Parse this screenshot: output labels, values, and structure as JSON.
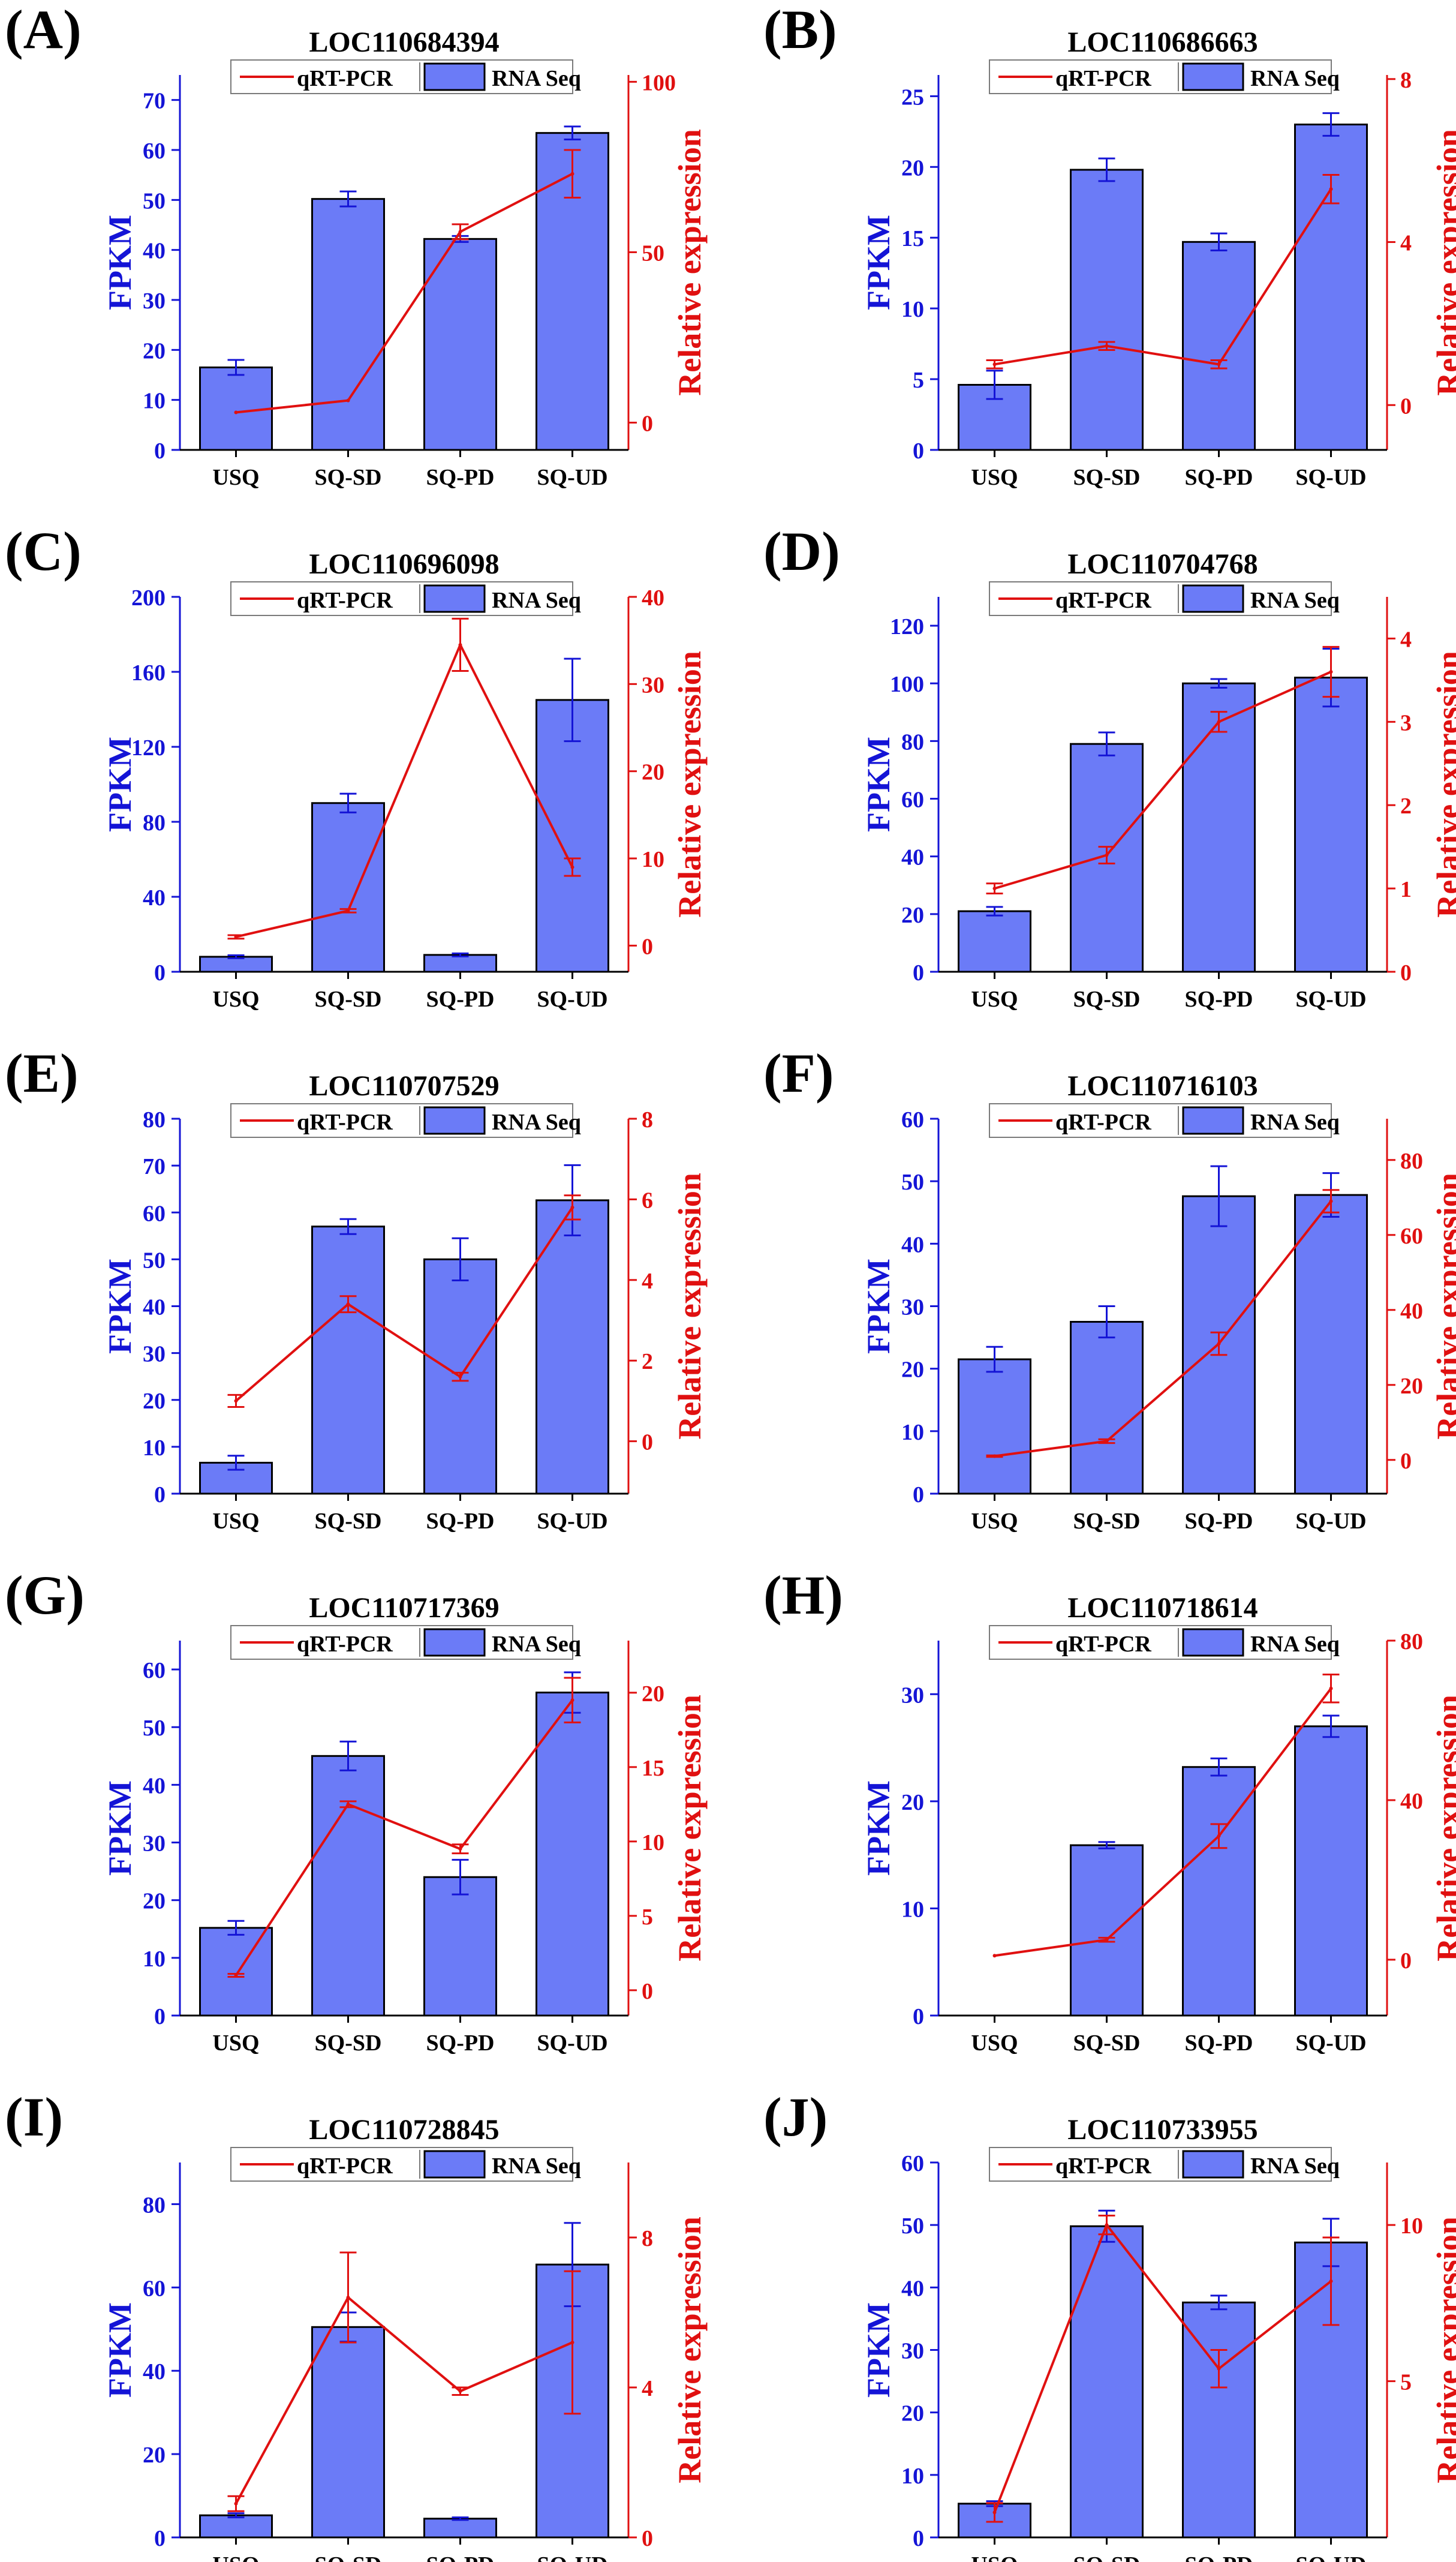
{
  "figure": {
    "categories": [
      "USQ",
      "SQ-SD",
      "SQ-PD",
      "SQ-UD"
    ],
    "left_axis_label": "FPKM",
    "right_axis_label": "Relative expression",
    "legend_line_label": "qRT-PCR",
    "legend_bar_label": "RNA Seq",
    "colors": {
      "bar_fill": "#6B7BF7",
      "bar_stroke": "#000000",
      "left_axis": "#1414D6",
      "right_axis": "#E01010",
      "line": "#E01010",
      "bar_error": "#1414D6",
      "text": "#000000"
    }
  },
  "chart_data": [
    {
      "panel": "(A)",
      "title": "LOC110684394",
      "type": "bar+line",
      "categories": [
        "USQ",
        "SQ-SD",
        "SQ-PD",
        "SQ-UD"
      ],
      "xlabel": "",
      "ylabel": "FPKM",
      "y2label": "Relative expression",
      "ylim": [
        0,
        75
      ],
      "yticks": [
        0,
        10,
        20,
        30,
        40,
        50,
        60,
        70
      ],
      "y2lim": [
        -8,
        102
      ],
      "y2ticks": [
        0,
        50,
        100
      ],
      "series": [
        {
          "name": "RNA Seq",
          "kind": "bar",
          "values": [
            16.5,
            50.2,
            42.2,
            63.4
          ],
          "errors": [
            1.5,
            1.5,
            0.6,
            1.3
          ]
        },
        {
          "name": "qRT-PCR",
          "kind": "line",
          "values": [
            3,
            6.5,
            56,
            73
          ],
          "errors": [
            0,
            0,
            2.2,
            7
          ]
        }
      ]
    },
    {
      "panel": "(B)",
      "title": "LOC110686663",
      "type": "bar+line",
      "categories": [
        "USQ",
        "SQ-SD",
        "SQ-PD",
        "SQ-UD"
      ],
      "xlabel": "",
      "ylabel": "FPKM",
      "y2label": "Relative expression",
      "ylim": [
        0,
        26.5
      ],
      "yticks": [
        0,
        5,
        10,
        15,
        20,
        25
      ],
      "y2lim": [
        -1.1,
        8.1
      ],
      "y2ticks": [
        0,
        4,
        8
      ],
      "series": [
        {
          "name": "RNA Seq",
          "kind": "bar",
          "values": [
            4.6,
            19.8,
            14.7,
            23.0
          ],
          "errors": [
            1.0,
            0.8,
            0.6,
            0.8
          ]
        },
        {
          "name": "qRT-PCR",
          "kind": "line",
          "values": [
            1.0,
            1.45,
            1.0,
            5.3
          ],
          "errors": [
            0.1,
            0.1,
            0.1,
            0.35
          ]
        }
      ]
    },
    {
      "panel": "(C)",
      "title": "LOC110696098",
      "type": "bar+line",
      "categories": [
        "USQ",
        "SQ-SD",
        "SQ-PD",
        "SQ-UD"
      ],
      "xlabel": "",
      "ylabel": "FPKM",
      "y2label": "Relative expression",
      "ylim": [
        0,
        200
      ],
      "yticks": [
        0,
        40,
        80,
        120,
        160,
        200
      ],
      "y2lim": [
        -3,
        40
      ],
      "y2ticks": [
        0,
        10,
        20,
        30,
        40
      ],
      "series": [
        {
          "name": "RNA Seq",
          "kind": "bar",
          "values": [
            8,
            90,
            9,
            145
          ],
          "errors": [
            0.8,
            5,
            0.8,
            22
          ]
        },
        {
          "name": "qRT-PCR",
          "kind": "line",
          "values": [
            1,
            4,
            34.5,
            9
          ],
          "errors": [
            0.2,
            0.2,
            3,
            1
          ]
        }
      ]
    },
    {
      "panel": "(D)",
      "title": "LOC110704768",
      "type": "bar+line",
      "categories": [
        "USQ",
        "SQ-SD",
        "SQ-PD",
        "SQ-UD"
      ],
      "xlabel": "",
      "ylabel": "FPKM",
      "y2label": "Relative expression",
      "ylim": [
        0,
        130
      ],
      "yticks": [
        0,
        20,
        40,
        60,
        80,
        100,
        120
      ],
      "y2lim": [
        0,
        4.5
      ],
      "y2ticks": [
        0,
        1,
        2,
        3,
        4
      ],
      "series": [
        {
          "name": "RNA Seq",
          "kind": "bar",
          "values": [
            21,
            79,
            100,
            102
          ],
          "errors": [
            1.5,
            4,
            1.5,
            10
          ]
        },
        {
          "name": "qRT-PCR",
          "kind": "line",
          "values": [
            1.0,
            1.4,
            3.0,
            3.6
          ],
          "errors": [
            0.06,
            0.1,
            0.12,
            0.3
          ]
        }
      ]
    },
    {
      "panel": "(E)",
      "title": "LOC110707529",
      "type": "bar+line",
      "categories": [
        "USQ",
        "SQ-SD",
        "SQ-PD",
        "SQ-UD"
      ],
      "xlabel": "",
      "ylabel": "FPKM",
      "y2label": "Relative expression",
      "ylim": [
        0,
        80
      ],
      "yticks": [
        0,
        10,
        20,
        30,
        40,
        50,
        60,
        70,
        80
      ],
      "y2lim": [
        -1.3,
        8
      ],
      "y2ticks": [
        0,
        2,
        4,
        6,
        8
      ],
      "series": [
        {
          "name": "RNA Seq",
          "kind": "bar",
          "values": [
            6.6,
            57,
            50,
            62.6
          ],
          "errors": [
            1.5,
            1.6,
            4.5,
            7.5
          ]
        },
        {
          "name": "qRT-PCR",
          "kind": "line",
          "values": [
            1.0,
            3.4,
            1.6,
            5.8
          ],
          "errors": [
            0.15,
            0.2,
            0.1,
            0.3
          ]
        }
      ]
    },
    {
      "panel": "(F)",
      "title": "LOC110716103",
      "type": "bar+line",
      "categories": [
        "USQ",
        "SQ-SD",
        "SQ-PD",
        "SQ-UD"
      ],
      "xlabel": "",
      "ylabel": "FPKM",
      "y2label": "Relative expression",
      "ylim": [
        0,
        60
      ],
      "yticks": [
        0,
        10,
        20,
        30,
        40,
        50,
        60
      ],
      "y2lim": [
        -9,
        91
      ],
      "y2ticks": [
        0,
        20,
        40,
        60,
        80
      ],
      "series": [
        {
          "name": "RNA Seq",
          "kind": "bar",
          "values": [
            21.5,
            27.5,
            47.6,
            47.8
          ],
          "errors": [
            2,
            2.5,
            4.8,
            3.5
          ]
        },
        {
          "name": "qRT-PCR",
          "kind": "line",
          "values": [
            1,
            5,
            31,
            69
          ],
          "errors": [
            0.2,
            0.5,
            3,
            3
          ]
        }
      ]
    },
    {
      "panel": "(G)",
      "title": "LOC110717369",
      "type": "bar+line",
      "categories": [
        "USQ",
        "SQ-SD",
        "SQ-PD",
        "SQ-UD"
      ],
      "xlabel": "",
      "ylabel": "FPKM",
      "y2label": "Relative expression",
      "ylim": [
        0,
        65
      ],
      "yticks": [
        0,
        10,
        20,
        30,
        40,
        50,
        60
      ],
      "y2lim": [
        -1.7,
        23.5
      ],
      "y2ticks": [
        0,
        5,
        10,
        15,
        20
      ],
      "series": [
        {
          "name": "RNA Seq",
          "kind": "bar",
          "values": [
            15.2,
            45,
            24,
            56
          ],
          "errors": [
            1.2,
            2.5,
            3.0,
            3.5
          ]
        },
        {
          "name": "qRT-PCR",
          "kind": "line",
          "values": [
            1,
            12.5,
            9.5,
            19.5
          ],
          "errors": [
            0.1,
            0.2,
            0.3,
            1.5
          ]
        }
      ]
    },
    {
      "panel": "(H)",
      "title": "LOC110718614",
      "type": "bar+line",
      "categories": [
        "USQ",
        "SQ-SD",
        "SQ-PD",
        "SQ-UD"
      ],
      "xlabel": "",
      "ylabel": "FPKM",
      "y2label": "Relative expression",
      "ylim": [
        0,
        35
      ],
      "yticks": [
        0,
        10,
        20,
        30
      ],
      "y2lim": [
        -14,
        80
      ],
      "y2ticks": [
        0,
        40,
        80
      ],
      "series": [
        {
          "name": "RNA Seq",
          "kind": "bar",
          "values": [
            0,
            15.9,
            23.2,
            27
          ],
          "errors": [
            0,
            0.3,
            0.8,
            1
          ]
        },
        {
          "name": "qRT-PCR",
          "kind": "line",
          "values": [
            1,
            5,
            31,
            68
          ],
          "errors": [
            0,
            0.5,
            3,
            3.5
          ]
        }
      ]
    },
    {
      "panel": "(I)",
      "title": "LOC110728845",
      "type": "bar+line",
      "categories": [
        "USQ",
        "SQ-SD",
        "SQ-PD",
        "SQ-UD"
      ],
      "xlabel": "",
      "ylabel": "FPKM",
      "y2label": "Relative expression",
      "ylim": [
        0,
        90
      ],
      "yticks": [
        0,
        20,
        40,
        60,
        80
      ],
      "y2lim": [
        0,
        10
      ],
      "y2ticks": [
        0,
        4,
        8
      ],
      "series": [
        {
          "name": "RNA Seq",
          "kind": "bar",
          "values": [
            5.3,
            50.5,
            4.5,
            65.5
          ],
          "errors": [
            0.5,
            3.5,
            0.3,
            10
          ]
        },
        {
          "name": "qRT-PCR",
          "kind": "line",
          "values": [
            0.9,
            6.4,
            3.9,
            5.2
          ],
          "errors": [
            0.2,
            1.2,
            0.1,
            1.9
          ]
        }
      ]
    },
    {
      "panel": "(J)",
      "title": "LOC110733955",
      "type": "bar+line",
      "categories": [
        "USQ",
        "SQ-SD",
        "SQ-PD",
        "SQ-UD"
      ],
      "xlabel": "",
      "ylabel": "FPKM",
      "y2label": "Relative expression",
      "ylim": [
        0,
        60
      ],
      "yticks": [
        0,
        10,
        20,
        30,
        40,
        50,
        60
      ],
      "y2lim": [
        0,
        12
      ],
      "y2ticks": [
        5,
        10
      ],
      "series": [
        {
          "name": "RNA Seq",
          "kind": "bar",
          "values": [
            5.4,
            49.8,
            37.6,
            47.2
          ],
          "errors": [
            0.4,
            2.5,
            1.1,
            3.8
          ]
        },
        {
          "name": "qRT-PCR",
          "kind": "line",
          "values": [
            0.8,
            10.0,
            5.4,
            8.2
          ],
          "errors": [
            0.3,
            0.3,
            0.6,
            1.4
          ]
        }
      ]
    }
  ]
}
